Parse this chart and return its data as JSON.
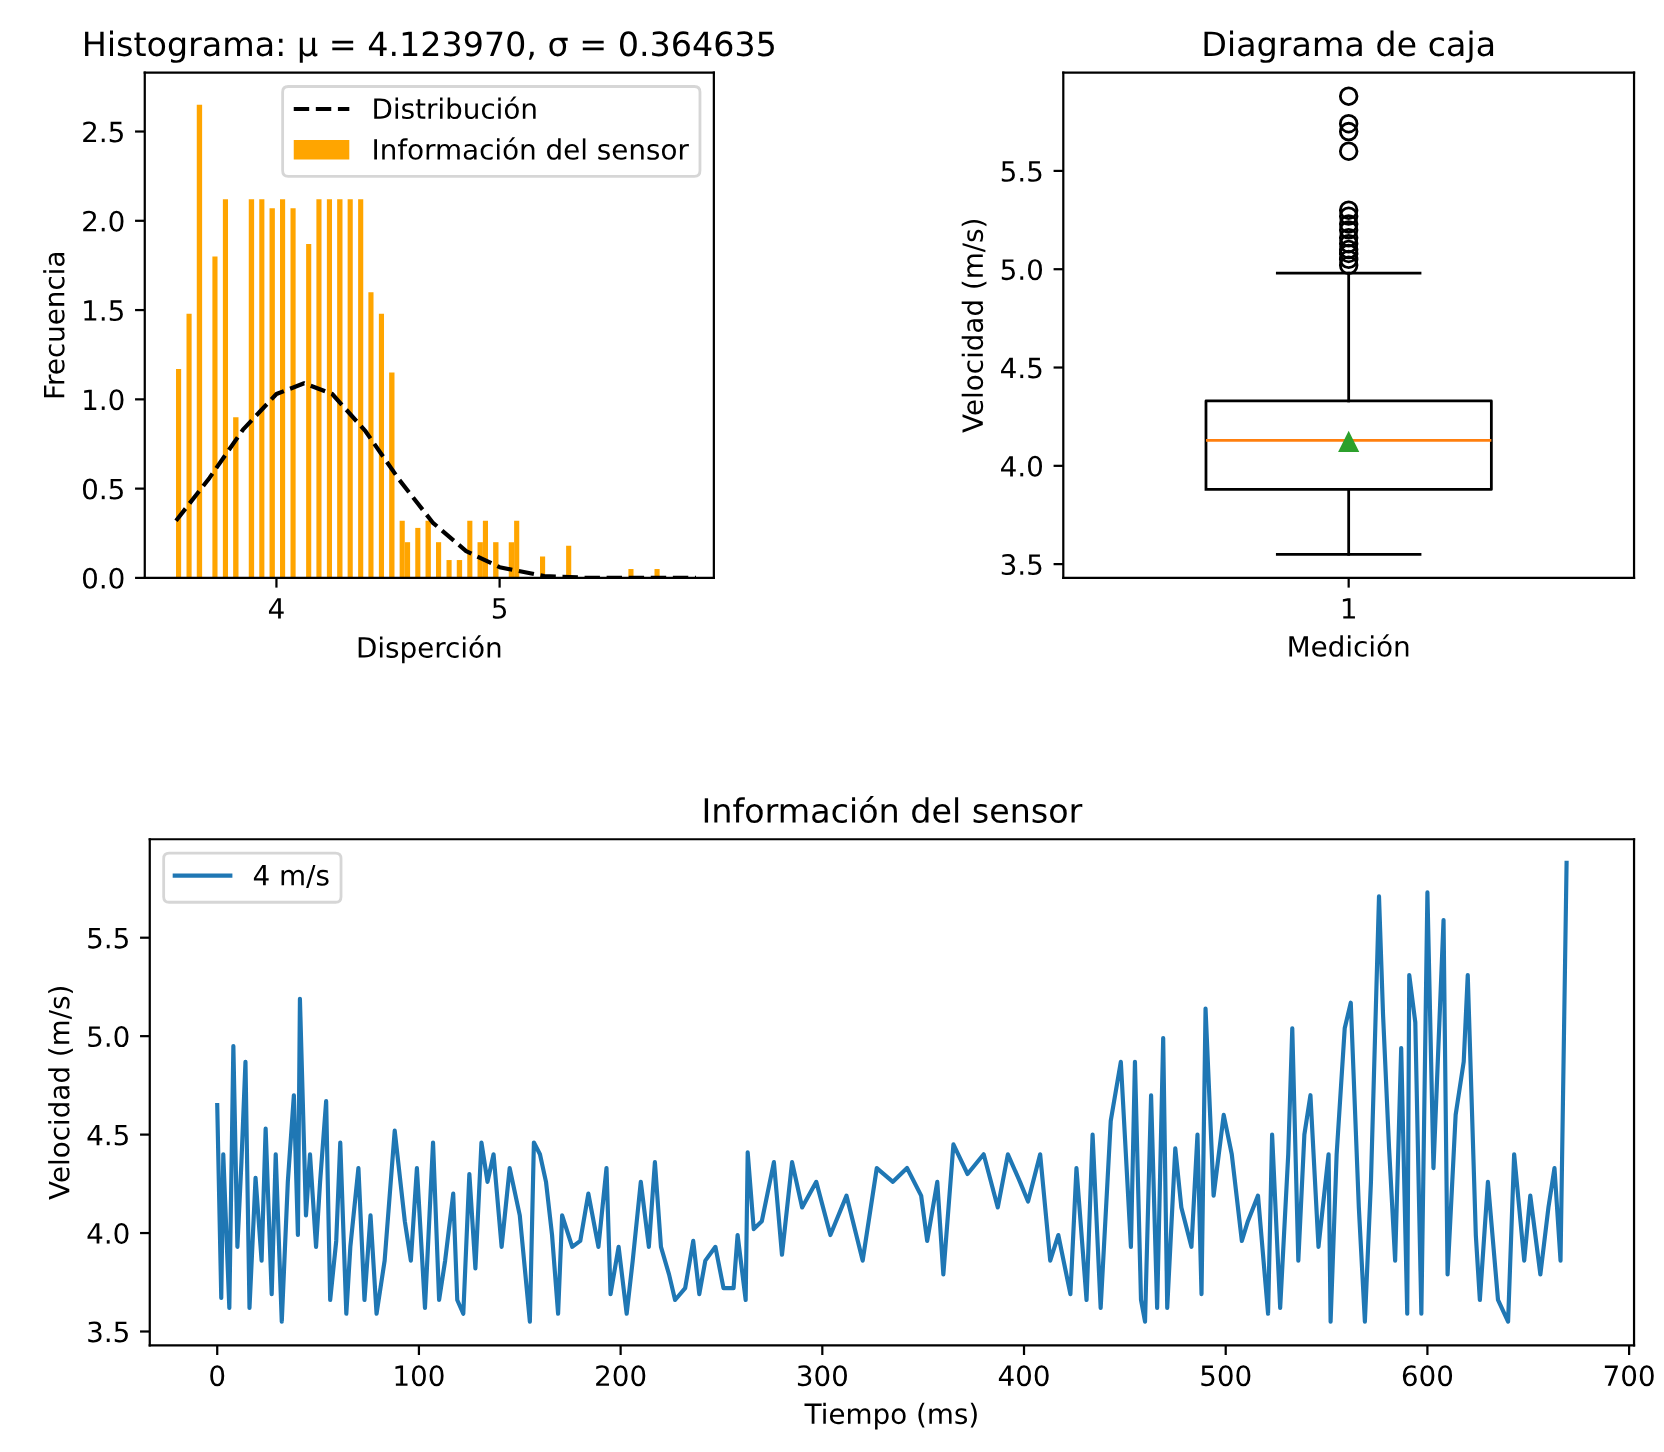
{
  "chart_data": [
    {
      "type": "histogram",
      "title": "Histograma: μ = 4.123970, σ = 0.364635",
      "xlabel": "Disperción",
      "ylabel": "Frecuencia",
      "bins": [
        3.55,
        3.573,
        3.597,
        3.62,
        3.643,
        3.667,
        3.69,
        3.713,
        3.736,
        3.76,
        3.783,
        3.806,
        3.83,
        3.853,
        3.876,
        3.9,
        3.923,
        3.946,
        3.969,
        3.993,
        4.016,
        4.039,
        4.063,
        4.086,
        4.109,
        4.133,
        4.156,
        4.179,
        4.202,
        4.226,
        4.249,
        4.272,
        4.296,
        4.319,
        4.342,
        4.366,
        4.389,
        4.412,
        4.435,
        4.459,
        4.482,
        4.505,
        4.529,
        4.552,
        4.575,
        4.599,
        4.622,
        4.645,
        4.668,
        4.692,
        4.715,
        4.738,
        4.762,
        4.785,
        4.808,
        4.832,
        4.855,
        4.878,
        4.901,
        4.925,
        4.948,
        4.971,
        4.995,
        5.018,
        5.041,
        5.065,
        5.088,
        5.111,
        5.134,
        5.158,
        5.181,
        5.204,
        5.228,
        5.251,
        5.274,
        5.298,
        5.321,
        5.344,
        5.367,
        5.391,
        5.414,
        5.437,
        5.461,
        5.484,
        5.507,
        5.531,
        5.554,
        5.577,
        5.6,
        5.624,
        5.647,
        5.67,
        5.694,
        5.717,
        5.74,
        5.764,
        5.787,
        5.81,
        5.833,
        5.857,
        5.88
      ],
      "series": [
        {
          "name": "Distribución",
          "type": "line",
          "color": "#000000",
          "line_style": "dashed",
          "x": [
            3.55,
            3.7,
            3.85,
            4.0,
            4.124,
            4.25,
            4.4,
            4.55,
            4.7,
            4.85,
            5.0,
            5.2,
            5.4,
            5.6,
            5.88
          ],
          "values": [
            0.32,
            0.56,
            0.83,
            1.03,
            1.09,
            1.03,
            0.82,
            0.55,
            0.31,
            0.15,
            0.06,
            0.01,
            0.0,
            0.0,
            0.0
          ]
        },
        {
          "name": "Información del sensor",
          "color": "#ffa500",
          "values": [
            1.17,
            0,
            1.48,
            0,
            2.65,
            0,
            0,
            1.8,
            0,
            2.12,
            0,
            0.9,
            0,
            0,
            2.12,
            0,
            2.12,
            0,
            2.07,
            0,
            2.12,
            0,
            2.07,
            0,
            0,
            1.87,
            0,
            2.12,
            0,
            2.12,
            0,
            2.12,
            0,
            2.12,
            0,
            2.12,
            0,
            1.6,
            0,
            1.48,
            0,
            1.15,
            0,
            0.32,
            0.2,
            0,
            0.28,
            0,
            0.32,
            0,
            0.2,
            0,
            0.1,
            0,
            0.1,
            0,
            0.32,
            0,
            0.2,
            0.32,
            0,
            0.2,
            0,
            0,
            0.2,
            0.32,
            0,
            0,
            null,
            0,
            0.12,
            0,
            0,
            0,
            0,
            0.18,
            0,
            0,
            0,
            0,
            0,
            0,
            0,
            0,
            0,
            0,
            0,
            0.05,
            0,
            0,
            0,
            0,
            0.05,
            0,
            0,
            0,
            0,
            0,
            0,
            0
          ]
        }
      ],
      "xlim": [
        3.41,
        5.96
      ],
      "ylim": [
        0,
        2.83
      ],
      "xticks": [
        4,
        5
      ],
      "yticks": [
        {
          "value": 0,
          "label": "0.0"
        },
        {
          "value": 0.5,
          "label": "0.5"
        },
        {
          "value": 1,
          "label": "1.0"
        },
        {
          "value": 1.5,
          "label": "1.5"
        },
        {
          "value": 2,
          "label": "2.0"
        },
        {
          "value": 2.5,
          "label": "2.5"
        }
      ],
      "legend": "top right"
    },
    {
      "type": "box",
      "title": "Diagrama de caja",
      "xlabel": "Medición",
      "ylabel": "Velocidad (m/s)",
      "categories": [
        "1"
      ],
      "boxes": [
        {
          "low": 3.55,
          "q1": 3.88,
          "median": 4.13,
          "q3": 4.33,
          "high": 4.98,
          "mean": 4.12,
          "outliers": [
            5.02,
            5.05,
            5.08,
            5.1,
            5.13,
            5.16,
            5.2,
            5.23,
            5.27,
            5.3,
            5.6,
            5.7,
            5.74,
            5.88
          ]
        }
      ],
      "ylim": [
        3.43,
        6.0
      ],
      "yticks": [
        {
          "value": 3.5,
          "label": "3.5"
        },
        {
          "value": 4,
          "label": "4.0"
        },
        {
          "value": 4.5,
          "label": "4.5"
        },
        {
          "value": 5,
          "label": "5.0"
        },
        {
          "value": 5.5,
          "label": "5.5"
        }
      ]
    },
    {
      "type": "line",
      "title": "Información del sensor",
      "xlabel": "Tiempo (ms)",
      "ylabel": "Velocidad (m/s)",
      "series": [
        {
          "name": "4 m/s",
          "color": "#1f77b4",
          "x": [
            0,
            2,
            3,
            6,
            8,
            10,
            12,
            14,
            16,
            19,
            22,
            24,
            27,
            29,
            32,
            35,
            38,
            40,
            41,
            44,
            46,
            49,
            51,
            54,
            56,
            59,
            61,
            64,
            66,
            70,
            73,
            76,
            79,
            83,
            88,
            93,
            96,
            99,
            103,
            107,
            110,
            113,
            117,
            119,
            122,
            125,
            128,
            131,
            134,
            137,
            141,
            145,
            150,
            155,
            157,
            160,
            163,
            166,
            169,
            171,
            176,
            180,
            184,
            189,
            193,
            195,
            199,
            203,
            206,
            210,
            214,
            217,
            220,
            224,
            227,
            232,
            236,
            239,
            242,
            247,
            251,
            256,
            258,
            262,
            263,
            266,
            270,
            276,
            280,
            285,
            290,
            297,
            304,
            312,
            320,
            327,
            335,
            342,
            349,
            352,
            357,
            360,
            365,
            372,
            380,
            387,
            392,
            398,
            402,
            408,
            413,
            417,
            423,
            426,
            431,
            434,
            438,
            443,
            448,
            453,
            455,
            458,
            460,
            463,
            466,
            469,
            471,
            475,
            478,
            483,
            486,
            488,
            490,
            494,
            499,
            503,
            508,
            511,
            516,
            521,
            523,
            527,
            531,
            533,
            536,
            539,
            542,
            546,
            551,
            552,
            555,
            559,
            562,
            566,
            569,
            572,
            576,
            578,
            581,
            584,
            587,
            590,
            591,
            594,
            597,
            600,
            603,
            608,
            610,
            614,
            618,
            620,
            624,
            626,
            630,
            635,
            640,
            643,
            648,
            651,
            656,
            660,
            663,
            666,
            669
          ],
          "values": [
            4.65,
            3.67,
            4.4,
            3.62,
            4.95,
            3.93,
            4.36,
            4.87,
            3.62,
            4.28,
            3.86,
            4.53,
            3.69,
            4.4,
            3.55,
            4.26,
            4.7,
            3.99,
            5.19,
            4.09,
            4.4,
            3.93,
            4.26,
            4.67,
            3.66,
            3.96,
            4.46,
            3.59,
            3.93,
            4.33,
            3.66,
            4.09,
            3.59,
            3.86,
            4.52,
            4.06,
            3.86,
            4.33,
            3.62,
            4.46,
            3.66,
            3.86,
            4.2,
            3.66,
            3.59,
            4.3,
            3.82,
            4.46,
            4.26,
            4.4,
            3.93,
            4.33,
            4.09,
            3.55,
            4.46,
            4.4,
            4.26,
            3.99,
            3.59,
            4.09,
            3.93,
            3.96,
            4.2,
            3.93,
            4.33,
            3.69,
            3.93,
            3.59,
            3.86,
            4.26,
            3.93,
            4.36,
            3.93,
            3.79,
            3.66,
            3.72,
            3.96,
            3.69,
            3.86,
            3.93,
            3.72,
            3.72,
            3.99,
            3.66,
            4.41,
            4.02,
            4.06,
            4.36,
            3.89,
            4.36,
            4.13,
            4.26,
            3.99,
            4.19,
            3.86,
            4.33,
            4.26,
            4.33,
            4.19,
            3.96,
            4.26,
            3.79,
            4.45,
            4.3,
            4.4,
            4.13,
            4.4,
            4.26,
            4.16,
            4.4,
            3.86,
            3.99,
            3.69,
            4.33,
            3.66,
            4.5,
            3.62,
            4.57,
            4.87,
            3.93,
            4.87,
            3.66,
            3.55,
            4.7,
            3.62,
            4.99,
            3.62,
            4.43,
            4.13,
            3.93,
            4.5,
            3.69,
            5.14,
            4.19,
            4.6,
            4.4,
            3.96,
            4.06,
            4.19,
            3.59,
            4.5,
            3.62,
            4.4,
            5.04,
            3.86,
            4.5,
            4.7,
            3.93,
            4.4,
            3.55,
            4.4,
            5.04,
            5.17,
            4.13,
            3.55,
            4.26,
            5.71,
            5.11,
            4.43,
            3.86,
            4.94,
            3.59,
            5.31,
            5.07,
            3.59,
            5.73,
            4.33,
            5.59,
            3.79,
            4.6,
            4.87,
            5.31,
            3.99,
            3.66,
            4.26,
            3.66,
            3.55,
            4.4,
            3.86,
            4.19,
            3.79,
            4.13,
            4.33,
            3.86,
            5.88
          ]
        }
      ],
      "xlim": [
        -33.45,
        702.45
      ],
      "ylim": [
        3.43,
        6.0
      ],
      "xticks": [
        0,
        100,
        200,
        300,
        400,
        500,
        600,
        700
      ],
      "yticks": [
        {
          "value": 3.5,
          "label": "3.5"
        },
        {
          "value": 4,
          "label": "4.0"
        },
        {
          "value": 4.5,
          "label": "4.5"
        },
        {
          "value": 5,
          "label": "5.0"
        },
        {
          "value": 5.5,
          "label": "5.5"
        }
      ],
      "legend": "top left",
      "line_style": "solid",
      "marker": "none"
    }
  ]
}
